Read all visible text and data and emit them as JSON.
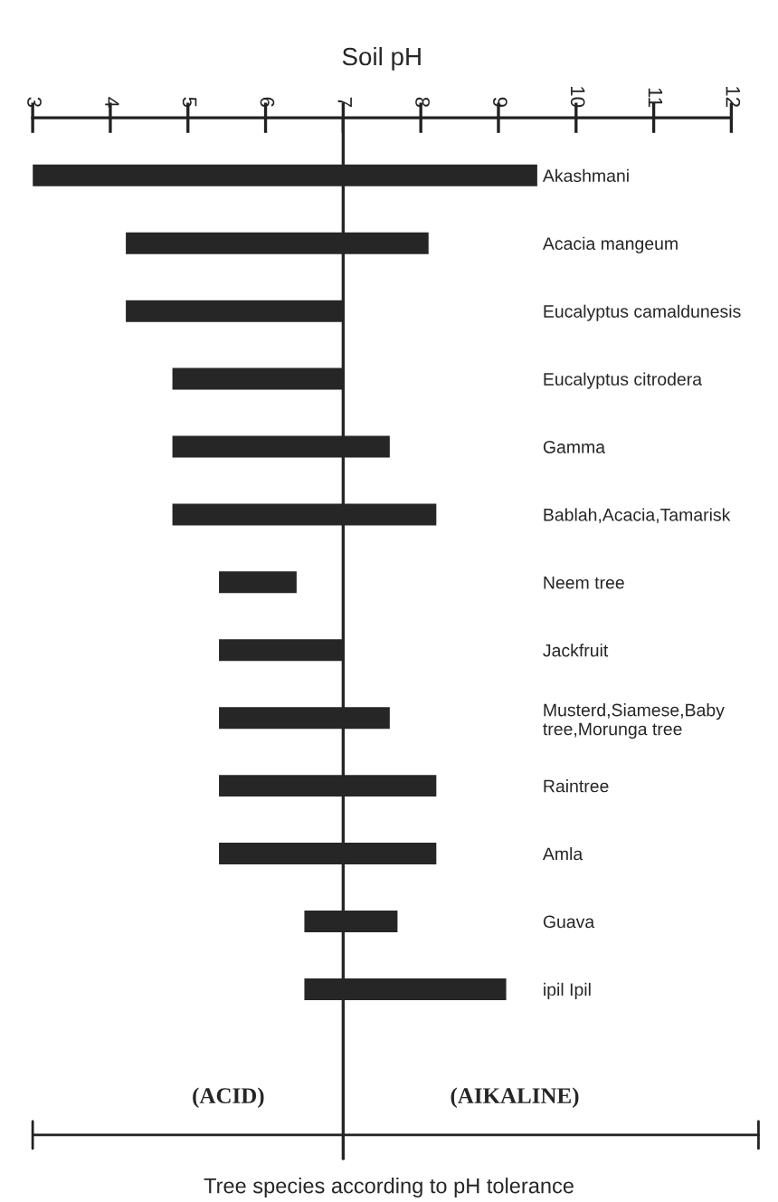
{
  "chart_data": {
    "type": "bar",
    "orientation": "horizontal",
    "xlabel": "Soil pH",
    "categories": [
      "Akashmani",
      "Acacia mangeum",
      "Eucalyptus camaldunesis",
      "Eucalyptus citrodera",
      "Gamma",
      "Bablah,Acacia,Tamarisk",
      "Neem tree",
      "Jackfruit",
      "Musterd,Siamese,Baby\ntree,Morunga tree",
      "Raintree",
      "Amla",
      "Guava",
      "ipil Ipil"
    ],
    "base": [
      3.0,
      4.2,
      4.2,
      4.8,
      4.8,
      4.8,
      5.4,
      5.4,
      5.4,
      5.4,
      5.4,
      6.5,
      6.5
    ],
    "values": [
      6.5,
      3.9,
      2.8,
      2.2,
      2.8,
      3.4,
      1.0,
      1.6,
      2.2,
      2.8,
      2.8,
      1.2,
      2.6
    ],
    "color": "#262626",
    "xlim": [
      3,
      12
    ],
    "xticks": [
      3,
      4,
      5,
      6,
      7,
      8,
      9,
      10,
      11,
      12
    ],
    "ref_lines": [
      {
        "axis": "x",
        "value": 7,
        "color": "#262626"
      }
    ],
    "annotations": [
      "(ACID)",
      "(AIKALINE)",
      "Tree species according to pH tolerance"
    ],
    "grid": false,
    "legend": false
  }
}
